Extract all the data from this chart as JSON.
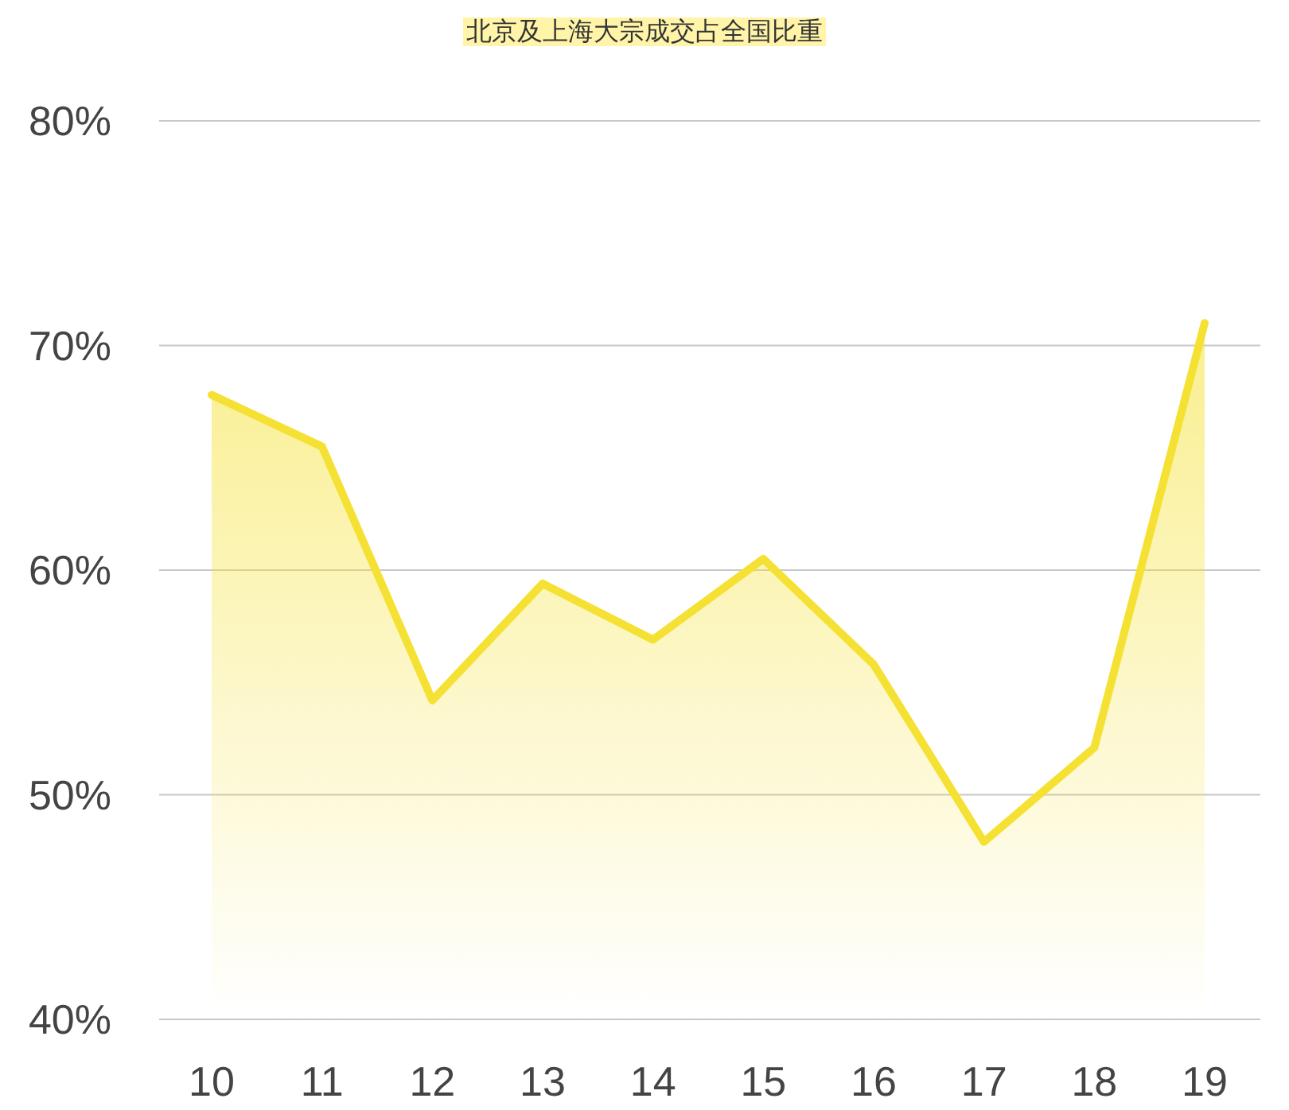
{
  "chart_data": {
    "type": "area",
    "title": "北京及上海大宗成交占全国比重",
    "categories": [
      "10",
      "11",
      "12",
      "13",
      "14",
      "15",
      "16",
      "17",
      "18",
      "19"
    ],
    "values": [
      67.8,
      65.5,
      54.2,
      59.4,
      56.9,
      60.5,
      55.8,
      47.9,
      52.1,
      71.0
    ],
    "color": "#f5e133",
    "ylim": [
      40,
      80
    ],
    "yticks": [
      {
        "value": 40,
        "label": "40%"
      },
      {
        "value": 50,
        "label": "50%"
      },
      {
        "value": 60,
        "label": "60%"
      },
      {
        "value": 70,
        "label": "70%"
      },
      {
        "value": 80,
        "label": "80%"
      }
    ],
    "grid": "y"
  }
}
